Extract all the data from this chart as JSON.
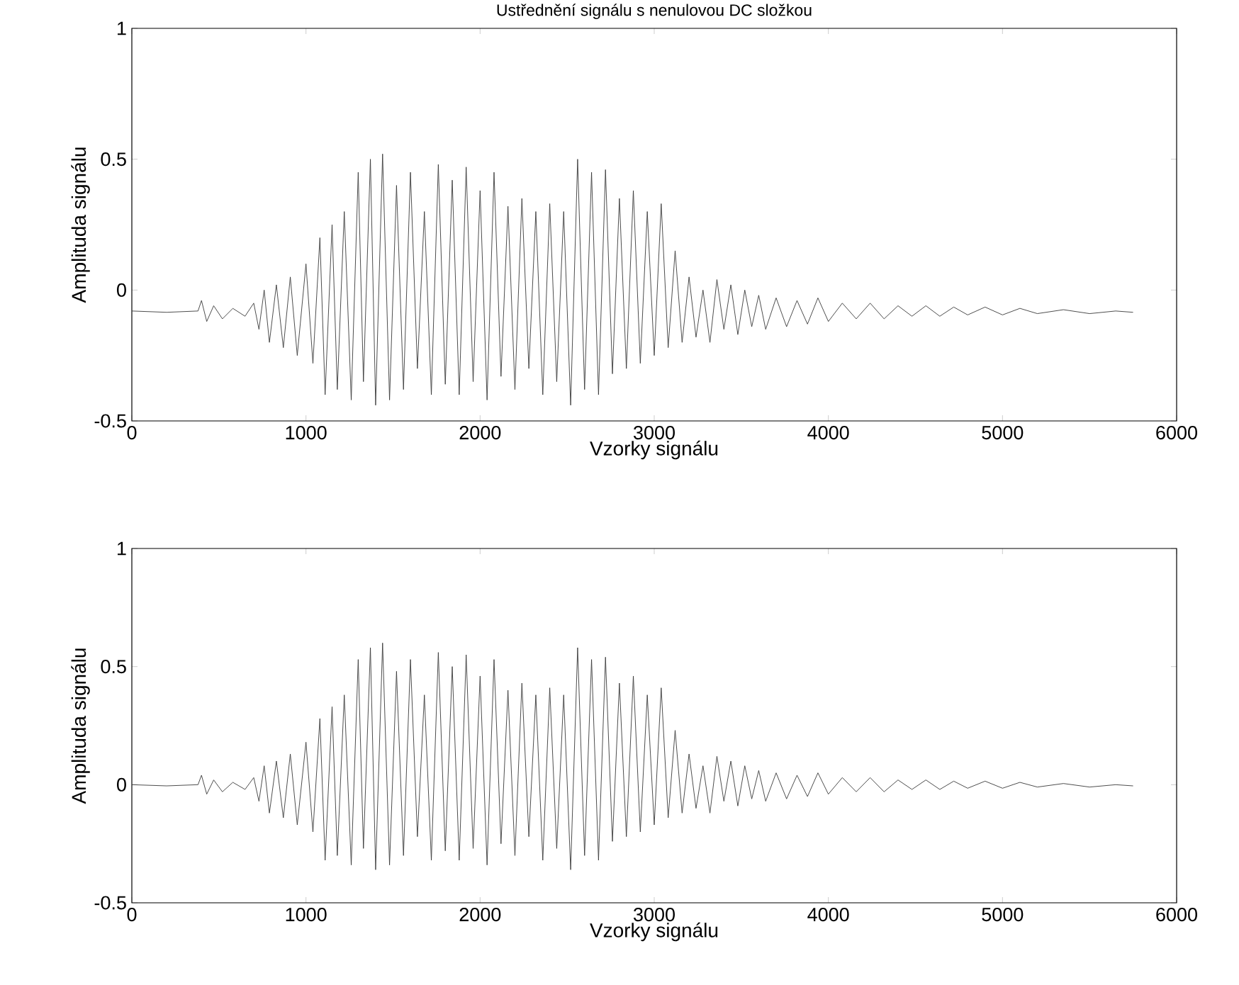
{
  "chart_data": [
    {
      "type": "line",
      "title": "Ustřednění signálu s nenulovou DC složkou",
      "xlabel": "Vzorky signálu",
      "ylabel": "Amplituda signálu",
      "color": "#3a3a3a",
      "xlim": [
        0,
        6000
      ],
      "ylim": [
        -0.5,
        1
      ],
      "xticks": [
        0,
        1000,
        2000,
        3000,
        4000,
        5000,
        6000
      ],
      "yticks": [
        -0.5,
        0,
        0.5,
        1
      ],
      "x": [
        0,
        200,
        380,
        400,
        430,
        470,
        520,
        580,
        650,
        700,
        730,
        760,
        790,
        830,
        870,
        910,
        950,
        1000,
        1040,
        1080,
        1110,
        1150,
        1180,
        1220,
        1260,
        1300,
        1330,
        1370,
        1400,
        1440,
        1480,
        1520,
        1560,
        1600,
        1640,
        1680,
        1720,
        1760,
        1800,
        1840,
        1880,
        1920,
        1960,
        2000,
        2040,
        2080,
        2120,
        2160,
        2200,
        2240,
        2280,
        2320,
        2360,
        2400,
        2440,
        2480,
        2520,
        2560,
        2600,
        2640,
        2680,
        2720,
        2760,
        2800,
        2840,
        2880,
        2920,
        2960,
        3000,
        3040,
        3080,
        3120,
        3160,
        3200,
        3240,
        3280,
        3320,
        3360,
        3400,
        3440,
        3480,
        3520,
        3560,
        3600,
        3640,
        3700,
        3760,
        3820,
        3880,
        3940,
        4000,
        4080,
        4160,
        4240,
        4320,
        4400,
        4480,
        4560,
        4640,
        4720,
        4800,
        4900,
        5000,
        5100,
        5200,
        5350,
        5500,
        5650,
        5750
      ],
      "values": [
        -0.08,
        -0.085,
        -0.08,
        -0.04,
        -0.12,
        -0.06,
        -0.11,
        -0.07,
        -0.1,
        -0.05,
        -0.15,
        0.0,
        -0.2,
        0.02,
        -0.22,
        0.05,
        -0.25,
        0.1,
        -0.28,
        0.2,
        -0.4,
        0.25,
        -0.38,
        0.3,
        -0.42,
        0.45,
        -0.35,
        0.5,
        -0.44,
        0.52,
        -0.42,
        0.4,
        -0.38,
        0.45,
        -0.3,
        0.3,
        -0.4,
        0.48,
        -0.36,
        0.42,
        -0.4,
        0.47,
        -0.35,
        0.38,
        -0.42,
        0.45,
        -0.33,
        0.32,
        -0.38,
        0.35,
        -0.3,
        0.3,
        -0.4,
        0.33,
        -0.35,
        0.3,
        -0.44,
        0.5,
        -0.38,
        0.45,
        -0.4,
        0.46,
        -0.32,
        0.35,
        -0.3,
        0.38,
        -0.28,
        0.3,
        -0.25,
        0.33,
        -0.22,
        0.15,
        -0.2,
        0.05,
        -0.18,
        0.0,
        -0.2,
        0.04,
        -0.15,
        0.02,
        -0.17,
        0.0,
        -0.14,
        -0.02,
        -0.15,
        -0.03,
        -0.14,
        -0.04,
        -0.13,
        -0.03,
        -0.12,
        -0.05,
        -0.11,
        -0.05,
        -0.11,
        -0.06,
        -0.1,
        -0.06,
        -0.1,
        -0.065,
        -0.095,
        -0.065,
        -0.095,
        -0.07,
        -0.09,
        -0.075,
        -0.09,
        -0.08,
        -0.085
      ]
    },
    {
      "type": "line",
      "xlabel": "Vzorky signálu",
      "ylabel": "Amplituda signálu",
      "color": "#3a3a3a",
      "xlim": [
        0,
        6000
      ],
      "ylim": [
        -0.5,
        1
      ],
      "xticks": [
        0,
        1000,
        2000,
        3000,
        4000,
        5000,
        6000
      ],
      "yticks": [
        -0.5,
        0,
        0.5,
        1
      ],
      "x": [
        0,
        200,
        380,
        400,
        430,
        470,
        520,
        580,
        650,
        700,
        730,
        760,
        790,
        830,
        870,
        910,
        950,
        1000,
        1040,
        1080,
        1110,
        1150,
        1180,
        1220,
        1260,
        1300,
        1330,
        1370,
        1400,
        1440,
        1480,
        1520,
        1560,
        1600,
        1640,
        1680,
        1720,
        1760,
        1800,
        1840,
        1880,
        1920,
        1960,
        2000,
        2040,
        2080,
        2120,
        2160,
        2200,
        2240,
        2280,
        2320,
        2360,
        2400,
        2440,
        2480,
        2520,
        2560,
        2600,
        2640,
        2680,
        2720,
        2760,
        2800,
        2840,
        2880,
        2920,
        2960,
        3000,
        3040,
        3080,
        3120,
        3160,
        3200,
        3240,
        3280,
        3320,
        3360,
        3400,
        3440,
        3480,
        3520,
        3560,
        3600,
        3640,
        3700,
        3760,
        3820,
        3880,
        3940,
        4000,
        4080,
        4160,
        4240,
        4320,
        4400,
        4480,
        4560,
        4640,
        4720,
        4800,
        4900,
        5000,
        5100,
        5200,
        5350,
        5500,
        5650,
        5750
      ],
      "values": [
        0.0,
        -0.005,
        0.0,
        0.04,
        -0.04,
        0.02,
        -0.03,
        0.01,
        -0.02,
        0.03,
        -0.07,
        0.08,
        -0.12,
        0.1,
        -0.14,
        0.13,
        -0.17,
        0.18,
        -0.2,
        0.28,
        -0.32,
        0.33,
        -0.3,
        0.38,
        -0.34,
        0.53,
        -0.27,
        0.58,
        -0.36,
        0.6,
        -0.34,
        0.48,
        -0.3,
        0.53,
        -0.22,
        0.38,
        -0.32,
        0.56,
        -0.28,
        0.5,
        -0.32,
        0.55,
        -0.27,
        0.46,
        -0.34,
        0.53,
        -0.25,
        0.4,
        -0.3,
        0.43,
        -0.22,
        0.38,
        -0.32,
        0.41,
        -0.27,
        0.38,
        -0.36,
        0.58,
        -0.3,
        0.53,
        -0.32,
        0.54,
        -0.24,
        0.43,
        -0.22,
        0.46,
        -0.2,
        0.38,
        -0.17,
        0.41,
        -0.14,
        0.23,
        -0.12,
        0.13,
        -0.1,
        0.08,
        -0.12,
        0.12,
        -0.07,
        0.1,
        -0.09,
        0.08,
        -0.06,
        0.06,
        -0.07,
        0.05,
        -0.06,
        0.04,
        -0.05,
        0.05,
        -0.04,
        0.03,
        -0.03,
        0.03,
        -0.03,
        0.02,
        -0.02,
        0.02,
        -0.02,
        0.015,
        -0.015,
        0.015,
        -0.015,
        0.01,
        -0.01,
        0.005,
        -0.01,
        0.0,
        -0.005
      ]
    }
  ]
}
